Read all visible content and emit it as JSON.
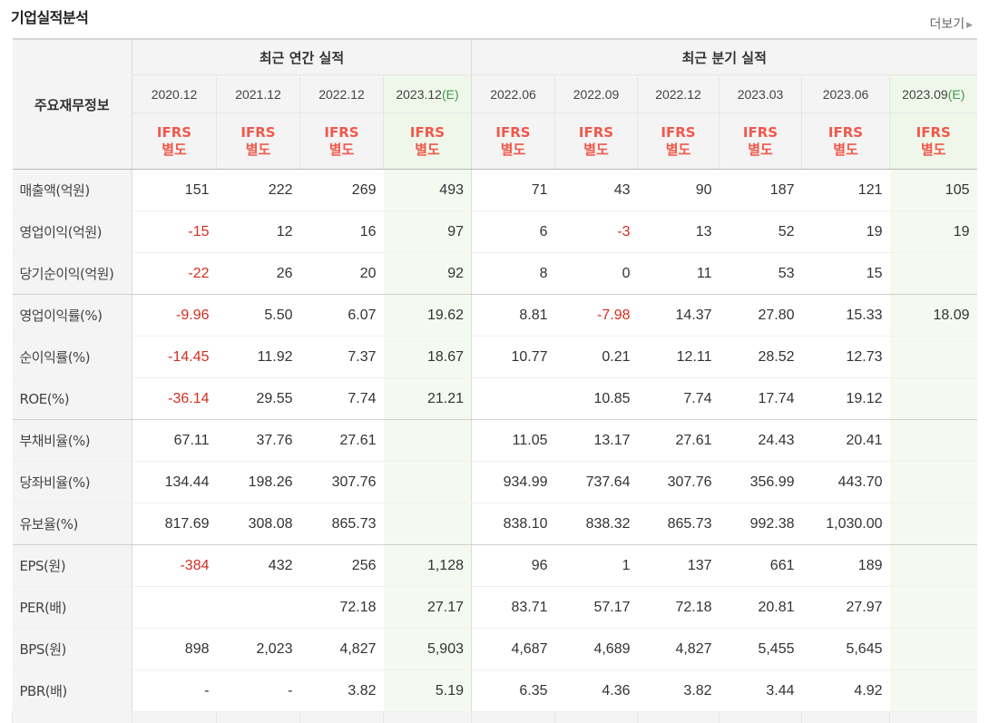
{
  "title": "기업실적분석",
  "more_label": "더보기",
  "header": {
    "row_label": "주요재무정보",
    "annual_group": "최근 연간 실적",
    "quarter_group": "최근 분기 실적",
    "periods": [
      {
        "label": "2020.12",
        "est": ""
      },
      {
        "label": "2021.12",
        "est": ""
      },
      {
        "label": "2022.12",
        "est": ""
      },
      {
        "label": "2023.12",
        "est": "(E)"
      },
      {
        "label": "2022.06",
        "est": ""
      },
      {
        "label": "2022.09",
        "est": ""
      },
      {
        "label": "2022.12",
        "est": ""
      },
      {
        "label": "2023.03",
        "est": ""
      },
      {
        "label": "2023.06",
        "est": ""
      },
      {
        "label": "2023.09",
        "est": "(E)"
      }
    ],
    "ifrs_line1": "IFRS",
    "ifrs_line2": "별도"
  },
  "rows": [
    {
      "label": "매출액(억원)",
      "values": [
        "151",
        "222",
        "269",
        "493",
        "71",
        "43",
        "90",
        "187",
        "121",
        "105"
      ]
    },
    {
      "label": "영업이익(억원)",
      "values": [
        "-15",
        "12",
        "16",
        "97",
        "6",
        "-3",
        "13",
        "52",
        "19",
        "19"
      ]
    },
    {
      "label": "당기순이익(억원)",
      "values": [
        "-22",
        "26",
        "20",
        "92",
        "8",
        "0",
        "11",
        "53",
        "15",
        ""
      ]
    },
    {
      "label": "영업이익률(%)",
      "values": [
        "-9.96",
        "5.50",
        "6.07",
        "19.62",
        "8.81",
        "-7.98",
        "14.37",
        "27.80",
        "15.33",
        "18.09"
      ]
    },
    {
      "label": "순이익률(%)",
      "values": [
        "-14.45",
        "11.92",
        "7.37",
        "18.67",
        "10.77",
        "0.21",
        "12.11",
        "28.52",
        "12.73",
        ""
      ]
    },
    {
      "label": "ROE(%)",
      "values": [
        "-36.14",
        "29.55",
        "7.74",
        "21.21",
        "",
        "10.85",
        "7.74",
        "17.74",
        "19.12",
        ""
      ]
    },
    {
      "label": "부채비율(%)",
      "values": [
        "67.11",
        "37.76",
        "27.61",
        "",
        "11.05",
        "13.17",
        "27.61",
        "24.43",
        "20.41",
        ""
      ]
    },
    {
      "label": "당좌비율(%)",
      "values": [
        "134.44",
        "198.26",
        "307.76",
        "",
        "934.99",
        "737.64",
        "307.76",
        "356.99",
        "443.70",
        ""
      ]
    },
    {
      "label": "유보율(%)",
      "values": [
        "817.69",
        "308.08",
        "865.73",
        "",
        "838.10",
        "838.32",
        "865.73",
        "992.38",
        "1,030.00",
        ""
      ]
    },
    {
      "label": "EPS(원)",
      "values": [
        "-384",
        "432",
        "256",
        "1,128",
        "96",
        "1",
        "137",
        "661",
        "189",
        ""
      ]
    },
    {
      "label": "PER(배)",
      "values": [
        "",
        "",
        "72.18",
        "27.17",
        "83.71",
        "57.17",
        "72.18",
        "20.81",
        "27.97",
        ""
      ]
    },
    {
      "label": "BPS(원)",
      "values": [
        "898",
        "2,023",
        "4,827",
        "5,903",
        "4,687",
        "4,689",
        "4,827",
        "5,455",
        "5,645",
        ""
      ]
    },
    {
      "label": "PBR(배)",
      "values": [
        "-",
        "-",
        "3.82",
        "5.19",
        "6.35",
        "4.36",
        "3.82",
        "3.44",
        "4.92",
        ""
      ]
    }
  ],
  "colors": {
    "negative": "#d52e1e",
    "ifrs": "#f0584c",
    "estimate_bg": "#eff7ea",
    "estimate_text": "#3e9a4a"
  }
}
